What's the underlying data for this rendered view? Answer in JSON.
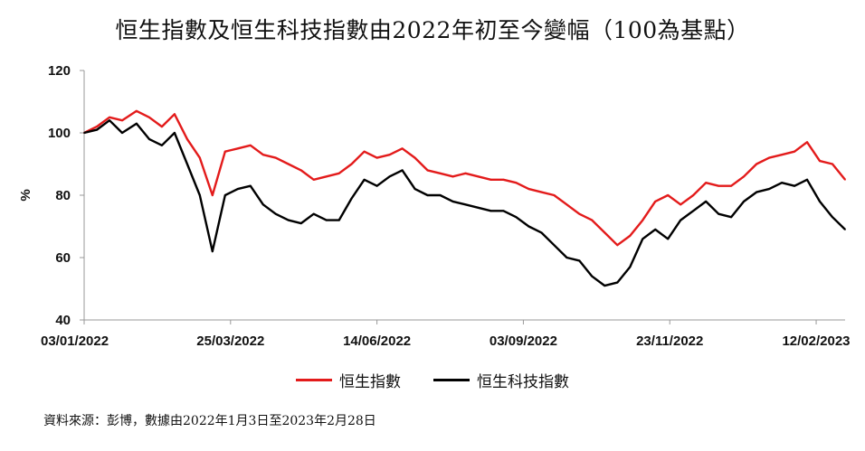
{
  "title": "恒生指數及恒生科技指數由2022年初至今變幅（100為基點）",
  "source": "資料來源：彭博，數據由2022年1月3日至2023年2月28日",
  "colors": {
    "hsi": "#e31b1b",
    "hstech": "#000000",
    "axis": "#999999"
  },
  "chart_data": {
    "type": "line",
    "title": "恒生指數及恒生科技指數由2022年初至今變幅（100為基點）",
    "ylabel": "%",
    "xlabel": "",
    "ylim": [
      40,
      120
    ],
    "yticks": [
      "120",
      "100",
      "80",
      "60",
      "40"
    ],
    "xticks": [
      "03/01/2022",
      "25/03/2022",
      "14/06/2022",
      "03/09/2022",
      "23/11/2022",
      "12/02/2023"
    ],
    "grid": false,
    "legend": "bottom",
    "x": [
      "2022-01-03",
      "2022-01-10",
      "2022-01-17",
      "2022-01-24",
      "2022-02-01",
      "2022-02-08",
      "2022-02-15",
      "2022-02-22",
      "2022-03-01",
      "2022-03-08",
      "2022-03-15",
      "2022-03-22",
      "2022-03-29",
      "2022-04-05",
      "2022-04-12",
      "2022-04-19",
      "2022-04-26",
      "2022-05-03",
      "2022-05-10",
      "2022-05-17",
      "2022-05-24",
      "2022-05-31",
      "2022-06-07",
      "2022-06-14",
      "2022-06-21",
      "2022-06-28",
      "2022-07-05",
      "2022-07-12",
      "2022-07-19",
      "2022-07-26",
      "2022-08-02",
      "2022-08-09",
      "2022-08-16",
      "2022-08-23",
      "2022-08-30",
      "2022-09-06",
      "2022-09-13",
      "2022-09-20",
      "2022-09-27",
      "2022-10-04",
      "2022-10-11",
      "2022-10-18",
      "2022-10-25",
      "2022-11-01",
      "2022-11-08",
      "2022-11-15",
      "2022-11-22",
      "2022-11-29",
      "2022-12-06",
      "2022-12-13",
      "2022-12-20",
      "2022-12-27",
      "2023-01-03",
      "2023-01-10",
      "2023-01-17",
      "2023-01-24",
      "2023-01-31",
      "2023-02-07",
      "2023-02-14",
      "2023-02-21",
      "2023-02-28"
    ],
    "series": [
      {
        "name": "恒生指數",
        "color": "#e31b1b",
        "values": [
          100,
          102,
          105,
          104,
          107,
          105,
          102,
          106,
          98,
          92,
          80,
          94,
          95,
          96,
          93,
          92,
          90,
          88,
          85,
          86,
          87,
          90,
          94,
          92,
          93,
          95,
          92,
          88,
          87,
          86,
          87,
          86,
          85,
          85,
          84,
          82,
          81,
          80,
          77,
          74,
          72,
          68,
          64,
          67,
          72,
          78,
          80,
          77,
          80,
          84,
          83,
          83,
          86,
          90,
          92,
          93,
          94,
          97,
          91,
          90,
          85
        ]
      },
      {
        "name": "恒生科技指數",
        "color": "#000000",
        "values": [
          100,
          101,
          104,
          100,
          103,
          98,
          96,
          100,
          90,
          80,
          62,
          80,
          82,
          83,
          77,
          74,
          72,
          71,
          74,
          72,
          72,
          79,
          85,
          83,
          86,
          88,
          82,
          80,
          80,
          78,
          77,
          76,
          75,
          75,
          73,
          70,
          68,
          64,
          60,
          59,
          54,
          51,
          52,
          57,
          66,
          69,
          66,
          72,
          75,
          78,
          74,
          73,
          78,
          81,
          82,
          84,
          83,
          85,
          78,
          73,
          69
        ]
      }
    ]
  },
  "legend_labels": {
    "hsi": "恒生指數",
    "hstech": "恒生科技指數"
  }
}
